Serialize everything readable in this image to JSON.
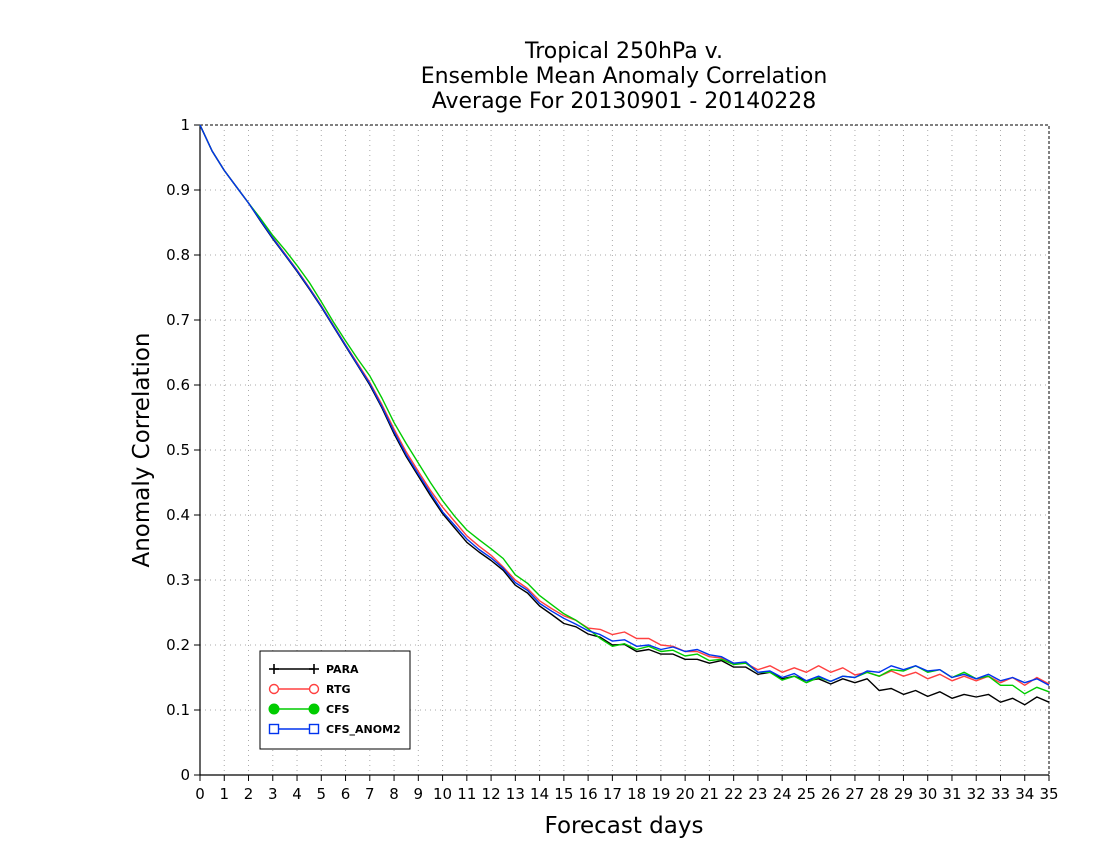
{
  "chart_data": {
    "type": "line",
    "title_lines": [
      "Tropical 250hPa v.",
      "Ensemble Mean Anomaly Correlation",
      "Average For 20130901 - 20140228"
    ],
    "xlabel": "Forecast days",
    "ylabel": "Anomaly Correlation",
    "xlim": [
      0,
      35
    ],
    "ylim": [
      0,
      1
    ],
    "xticks": [
      0,
      1,
      2,
      3,
      4,
      5,
      6,
      7,
      8,
      9,
      10,
      11,
      12,
      13,
      14,
      15,
      16,
      17,
      18,
      19,
      20,
      21,
      22,
      23,
      24,
      25,
      26,
      27,
      28,
      29,
      30,
      31,
      32,
      33,
      34,
      35
    ],
    "yticks": [
      0,
      0.1,
      0.2,
      0.3,
      0.4,
      0.5,
      0.6,
      0.7,
      0.8,
      0.9,
      1
    ],
    "ytick_labels": [
      "0",
      "0.1",
      "0.2",
      "0.3",
      "0.4",
      "0.5",
      "0.6",
      "0.7",
      "0.8",
      "0.9",
      "1"
    ],
    "grid": true,
    "legend_position": "bottom-left",
    "x": [
      0,
      0.5,
      1,
      1.5,
      2,
      2.5,
      3,
      3.5,
      4,
      4.5,
      5,
      5.5,
      6,
      6.5,
      7,
      7.5,
      8,
      8.5,
      9,
      9.5,
      10,
      10.5,
      11,
      11.5,
      12,
      12.5,
      13,
      13.5,
      14,
      14.5,
      15,
      15.5,
      16,
      16.5,
      17,
      17.5,
      18,
      18.5,
      19,
      19.5,
      20,
      20.5,
      21,
      21.5,
      22,
      22.5,
      23,
      23.5,
      24,
      24.5,
      25,
      25.5,
      26,
      26.5,
      27,
      27.5,
      28,
      28.5,
      29,
      29.5,
      30,
      30.5,
      31,
      31.5,
      32,
      32.5,
      33,
      33.5,
      34,
      34.5,
      35
    ],
    "series": [
      {
        "name": "PARA",
        "color": "#000000",
        "marker": "plus",
        "values": [
          1.0,
          0.96,
          0.93,
          0.905,
          0.88,
          0.852,
          0.825,
          0.8,
          0.775,
          0.748,
          0.72,
          0.69,
          0.66,
          0.63,
          0.6,
          0.565,
          0.525,
          0.49,
          0.46,
          0.43,
          0.402,
          0.38,
          0.358,
          0.343,
          0.33,
          0.315,
          0.292,
          0.28,
          0.26,
          0.247,
          0.233,
          0.228,
          0.217,
          0.212,
          0.2,
          0.201,
          0.19,
          0.193,
          0.186,
          0.186,
          0.178,
          0.178,
          0.172,
          0.176,
          0.166,
          0.166,
          0.155,
          0.158,
          0.148,
          0.152,
          0.145,
          0.148,
          0.14,
          0.148,
          0.142,
          0.148,
          0.13,
          0.133,
          0.124,
          0.13,
          0.121,
          0.128,
          0.118,
          0.124,
          0.12,
          0.124,
          0.112,
          0.118,
          0.108,
          0.12,
          0.112
        ]
      },
      {
        "name": "RTG",
        "color": "#ff4040",
        "marker": "circle-open",
        "values": [
          1.0,
          0.96,
          0.93,
          0.905,
          0.88,
          0.854,
          0.827,
          0.802,
          0.777,
          0.75,
          0.722,
          0.692,
          0.662,
          0.633,
          0.604,
          0.57,
          0.532,
          0.497,
          0.467,
          0.438,
          0.412,
          0.39,
          0.368,
          0.352,
          0.338,
          0.32,
          0.3,
          0.287,
          0.268,
          0.256,
          0.245,
          0.238,
          0.226,
          0.224,
          0.216,
          0.22,
          0.21,
          0.21,
          0.2,
          0.198,
          0.19,
          0.19,
          0.182,
          0.18,
          0.172,
          0.172,
          0.162,
          0.168,
          0.158,
          0.165,
          0.158,
          0.168,
          0.158,
          0.165,
          0.154,
          0.158,
          0.152,
          0.16,
          0.152,
          0.158,
          0.148,
          0.155,
          0.145,
          0.152,
          0.145,
          0.152,
          0.142,
          0.15,
          0.138,
          0.15,
          0.14
        ]
      },
      {
        "name": "CFS",
        "color": "#00cc00",
        "marker": "circle-filled",
        "values": [
          1.0,
          0.96,
          0.93,
          0.905,
          0.88,
          0.856,
          0.83,
          0.808,
          0.784,
          0.758,
          0.728,
          0.697,
          0.668,
          0.64,
          0.614,
          0.58,
          0.542,
          0.51,
          0.48,
          0.45,
          0.422,
          0.398,
          0.377,
          0.362,
          0.348,
          0.333,
          0.308,
          0.295,
          0.276,
          0.262,
          0.248,
          0.238,
          0.225,
          0.21,
          0.198,
          0.202,
          0.193,
          0.198,
          0.19,
          0.192,
          0.183,
          0.186,
          0.176,
          0.178,
          0.17,
          0.172,
          0.158,
          0.158,
          0.146,
          0.152,
          0.142,
          0.15,
          0.144,
          0.152,
          0.15,
          0.158,
          0.152,
          0.162,
          0.16,
          0.168,
          0.158,
          0.162,
          0.15,
          0.158,
          0.148,
          0.152,
          0.138,
          0.138,
          0.125,
          0.135,
          0.128
        ]
      },
      {
        "name": "CFS_ANOM2",
        "color": "#0033ee",
        "marker": "square-open",
        "values": [
          1.0,
          0.96,
          0.93,
          0.905,
          0.88,
          0.853,
          0.826,
          0.801,
          0.776,
          0.749,
          0.721,
          0.691,
          0.661,
          0.631,
          0.602,
          0.567,
          0.528,
          0.493,
          0.463,
          0.434,
          0.405,
          0.384,
          0.363,
          0.347,
          0.334,
          0.318,
          0.296,
          0.284,
          0.264,
          0.252,
          0.241,
          0.232,
          0.222,
          0.216,
          0.206,
          0.208,
          0.198,
          0.2,
          0.193,
          0.197,
          0.19,
          0.193,
          0.185,
          0.182,
          0.172,
          0.174,
          0.158,
          0.16,
          0.15,
          0.156,
          0.145,
          0.152,
          0.144,
          0.152,
          0.15,
          0.16,
          0.158,
          0.168,
          0.162,
          0.168,
          0.16,
          0.162,
          0.15,
          0.155,
          0.148,
          0.155,
          0.145,
          0.15,
          0.142,
          0.148,
          0.138
        ]
      }
    ]
  }
}
